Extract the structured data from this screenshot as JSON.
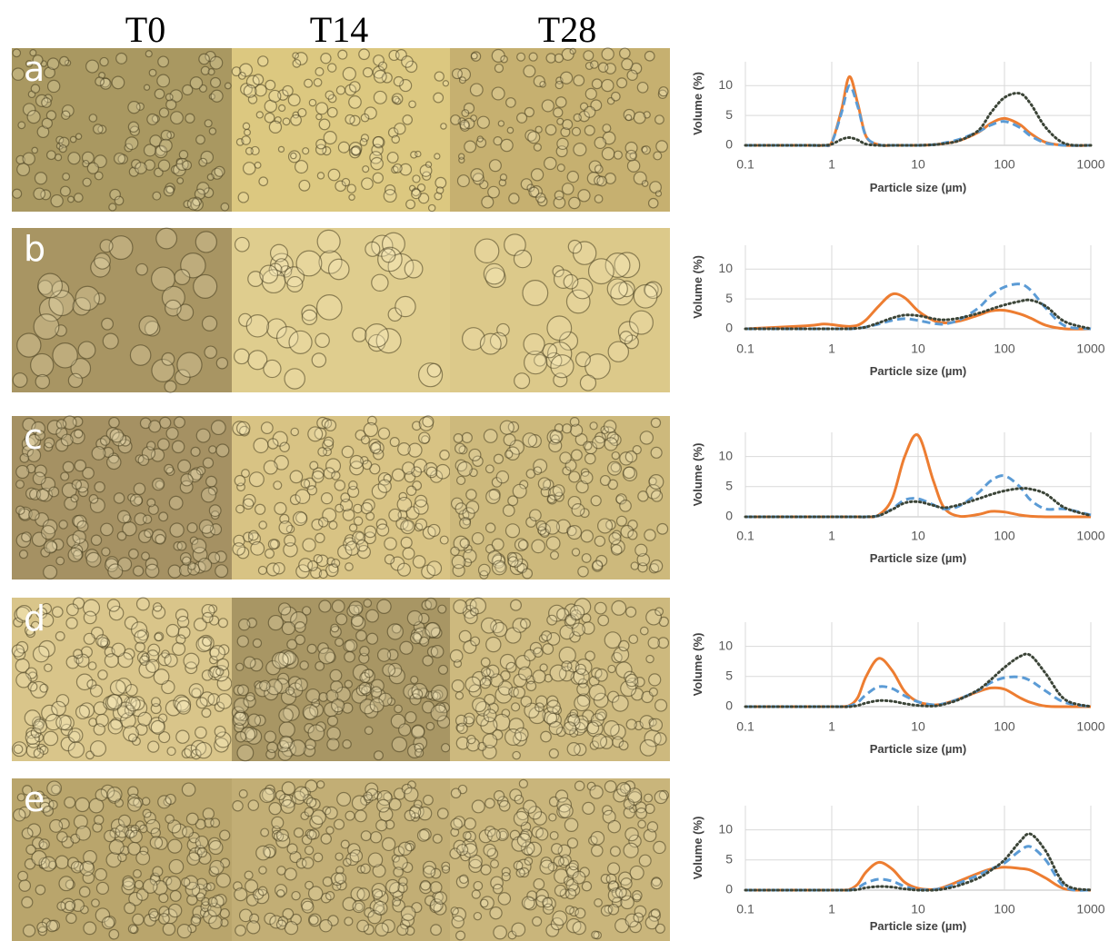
{
  "figure": {
    "columns": [
      "T0",
      "T14",
      "T28"
    ],
    "rows": [
      "a",
      "b",
      "c",
      "d",
      "e"
    ]
  },
  "chart_data": [
    {
      "type": "line",
      "xlabel": "Particle size (µm)",
      "ylabel": "Volume (%)",
      "xscale": "log",
      "grid": true,
      "xlim": [
        0.1,
        1000
      ],
      "ylim": [
        0,
        14
      ],
      "xticks": [
        0.1,
        1,
        10,
        100,
        1000
      ],
      "yticks": [
        0,
        5,
        10
      ],
      "x": [
        0.1,
        0.5,
        0.8,
        1,
        1.3,
        1.6,
        2,
        2.5,
        3.5,
        5,
        7,
        10,
        15,
        20,
        30,
        50,
        70,
        100,
        150,
        200,
        300,
        500,
        1000
      ],
      "series": [
        {
          "color": "#ed7d31",
          "dash": "solid",
          "values": [
            0,
            0,
            0,
            0.5,
            6,
            11.5,
            7,
            1.5,
            0.1,
            0,
            0,
            0,
            0.1,
            0.3,
            0.8,
            2.2,
            3.7,
            4.5,
            3.5,
            2,
            0.5,
            0,
            0
          ]
        },
        {
          "color": "#5b9bd5",
          "dash": "dashed",
          "values": [
            0,
            0,
            0,
            0.5,
            5.5,
            10,
            6.5,
            1.5,
            0.1,
            0,
            0,
            0,
            0.1,
            0.4,
            1,
            2.3,
            3.4,
            4,
            3,
            1.6,
            0.4,
            0,
            0
          ]
        },
        {
          "color": "#3b4437",
          "dash": "dotted",
          "values": [
            0,
            0,
            0,
            0.2,
            1,
            1.3,
            0.9,
            0.2,
            0,
            0,
            0,
            0,
            0.1,
            0.3,
            0.8,
            2.5,
            5.5,
            8,
            8.7,
            7,
            3,
            0.3,
            0
          ]
        }
      ]
    },
    {
      "type": "line",
      "xlabel": "Particle size (µm)",
      "ylabel": "Volume (%)",
      "xscale": "log",
      "grid": true,
      "xlim": [
        0.1,
        1000
      ],
      "ylim": [
        0,
        14
      ],
      "xticks": [
        0.1,
        1,
        10,
        100,
        1000
      ],
      "yticks": [
        0,
        5,
        10
      ],
      "x": [
        0.1,
        0.5,
        0.8,
        1,
        1.3,
        1.6,
        2,
        2.5,
        3.5,
        5,
        7,
        10,
        15,
        20,
        30,
        50,
        70,
        100,
        150,
        200,
        300,
        500,
        1000
      ],
      "series": [
        {
          "color": "#ed7d31",
          "dash": "solid",
          "values": [
            0,
            0.5,
            0.8,
            0.7,
            0.5,
            0.4,
            0.6,
            1.5,
            3.8,
            5.8,
            5.2,
            3,
            1.4,
            1,
            1.3,
            2.3,
            3,
            3.1,
            2.5,
            1.8,
            0.6,
            0,
            0
          ]
        },
        {
          "color": "#5b9bd5",
          "dash": "dashed",
          "values": [
            0,
            0,
            0,
            0,
            0,
            0,
            0.1,
            0.3,
            0.8,
            1.4,
            1.7,
            1.4,
            0.9,
            0.8,
            1.5,
            3.5,
            5.6,
            7,
            7.5,
            6.5,
            3.5,
            0.5,
            0
          ]
        },
        {
          "color": "#3b4437",
          "dash": "dotted",
          "values": [
            0,
            0,
            0,
            0,
            0,
            0,
            0.1,
            0.3,
            1,
            1.8,
            2.3,
            2.2,
            1.7,
            1.5,
            1.8,
            2.6,
            3.3,
            4,
            4.6,
            4.8,
            3.8,
            1.2,
            0
          ]
        }
      ]
    },
    {
      "type": "line",
      "xlabel": "Particle size (µm)",
      "ylabel": "Volume (%)",
      "xscale": "log",
      "grid": true,
      "xlim": [
        0.1,
        1000
      ],
      "ylim": [
        0,
        14
      ],
      "xticks": [
        0.1,
        1,
        10,
        100,
        1000
      ],
      "yticks": [
        0,
        5,
        10
      ],
      "x": [
        0.1,
        0.5,
        0.8,
        1,
        1.3,
        1.6,
        2,
        2.5,
        3.5,
        5,
        7,
        10,
        15,
        20,
        30,
        50,
        70,
        100,
        150,
        200,
        300,
        500,
        1000
      ],
      "series": [
        {
          "color": "#ed7d31",
          "dash": "solid",
          "values": [
            0,
            0,
            0,
            0,
            0,
            0,
            0,
            0,
            0.3,
            3,
            10,
            13.5,
            6,
            1.5,
            0.1,
            0.4,
            0.9,
            0.8,
            0.3,
            0.1,
            0,
            0,
            0
          ]
        },
        {
          "color": "#5b9bd5",
          "dash": "dashed",
          "values": [
            0,
            0,
            0,
            0,
            0,
            0,
            0,
            0,
            0.2,
            1.3,
            2.8,
            3,
            2,
            1.3,
            1.8,
            4,
            6,
            6.8,
            5,
            2.8,
            1.3,
            1.3,
            0.3
          ]
        },
        {
          "color": "#3b4437",
          "dash": "dotted",
          "values": [
            0,
            0,
            0,
            0,
            0,
            0,
            0,
            0,
            0.2,
            1.2,
            2.3,
            2.5,
            1.9,
            1.5,
            2,
            3,
            3.7,
            4.3,
            4.7,
            4.6,
            3.8,
            1.5,
            0.2
          ]
        }
      ]
    },
    {
      "type": "line",
      "xlabel": "Particle size (µm)",
      "ylabel": "Volume (%)",
      "xscale": "log",
      "grid": true,
      "xlim": [
        0.1,
        1000
      ],
      "ylim": [
        0,
        14
      ],
      "xticks": [
        0.1,
        1,
        10,
        100,
        1000
      ],
      "yticks": [
        0,
        5,
        10
      ],
      "x": [
        0.1,
        0.5,
        0.8,
        1,
        1.3,
        1.6,
        2,
        2.5,
        3.5,
        5,
        7,
        10,
        15,
        20,
        30,
        50,
        70,
        100,
        150,
        200,
        300,
        500,
        1000
      ],
      "series": [
        {
          "color": "#ed7d31",
          "dash": "solid",
          "values": [
            0,
            0,
            0,
            0,
            0,
            0.2,
            1.5,
            5,
            8,
            6,
            2.5,
            0.8,
            0.3,
            0.5,
            1.3,
            2.5,
            3.1,
            2.9,
            1.5,
            0.7,
            0.1,
            0,
            0
          ]
        },
        {
          "color": "#5b9bd5",
          "dash": "dashed",
          "values": [
            0,
            0,
            0,
            0,
            0,
            0.1,
            0.7,
            2,
            3.3,
            3,
            1.8,
            0.8,
            0.3,
            0.5,
            1.3,
            2.7,
            4,
            4.8,
            4.9,
            4.3,
            2.6,
            0.7,
            0
          ]
        },
        {
          "color": "#3b4437",
          "dash": "dotted",
          "values": [
            0,
            0,
            0,
            0,
            0,
            0,
            0.2,
            0.6,
            1,
            0.9,
            0.5,
            0.2,
            0.1,
            0.4,
            1.2,
            2.8,
            4.5,
            6.5,
            8.3,
            8.5,
            5.5,
            1.2,
            0
          ]
        }
      ]
    },
    {
      "type": "line",
      "xlabel": "Particle size (µm)",
      "ylabel": "Volume (%)",
      "xscale": "log",
      "grid": true,
      "xlim": [
        0.1,
        1000
      ],
      "ylim": [
        0,
        14
      ],
      "xticks": [
        0.1,
        1,
        10,
        100,
        1000
      ],
      "yticks": [
        0,
        5,
        10
      ],
      "x": [
        0.1,
        0.5,
        0.8,
        1,
        1.3,
        1.6,
        2,
        2.5,
        3.5,
        5,
        7,
        10,
        15,
        20,
        30,
        50,
        70,
        100,
        150,
        200,
        300,
        500,
        1000
      ],
      "series": [
        {
          "color": "#ed7d31",
          "dash": "solid",
          "values": [
            0,
            0,
            0,
            0,
            0,
            0.1,
            1,
            3,
            4.6,
            3.5,
            1.3,
            0.3,
            0.1,
            0.5,
            1.5,
            2.8,
            3.5,
            3.8,
            3.6,
            3.3,
            2,
            0.2,
            0
          ]
        },
        {
          "color": "#5b9bd5",
          "dash": "dashed",
          "values": [
            0,
            0,
            0,
            0,
            0,
            0,
            0.4,
            1.2,
            1.8,
            1.5,
            0.6,
            0.1,
            0.1,
            0.4,
            1.2,
            2.5,
            3.5,
            4.5,
            6.5,
            7.2,
            5,
            0.5,
            0
          ]
        },
        {
          "color": "#3b4437",
          "dash": "dotted",
          "values": [
            0,
            0,
            0,
            0,
            0,
            0,
            0.1,
            0.4,
            0.6,
            0.5,
            0.2,
            0,
            0,
            0.2,
            0.8,
            2,
            3.3,
            5,
            8,
            9.3,
            6.5,
            1,
            0
          ]
        }
      ]
    }
  ]
}
